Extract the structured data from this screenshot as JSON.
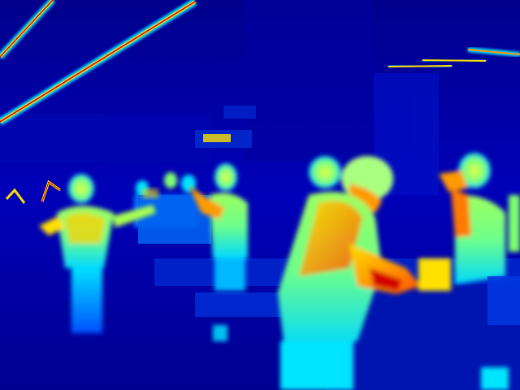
{
  "image": {
    "kind": "thermal-camera-frame",
    "palette": [
      "#00007a",
      "#0000ff",
      "#0064ff",
      "#00e5ff",
      "#7dff6e",
      "#ffe000",
      "#ff7a00",
      "#d40000"
    ],
    "subjects": [
      {
        "name": "worker-far-left-arms-raised"
      },
      {
        "name": "worker-center-back-row"
      },
      {
        "name": "worker-center-facing-left"
      },
      {
        "name": "worker-foreground-leaning"
      },
      {
        "name": "worker-right-at-bench"
      },
      {
        "name": "distant-worker-group"
      }
    ],
    "objects": [
      {
        "name": "ceiling-light-tube"
      },
      {
        "name": "ceiling-fixture-row"
      },
      {
        "name": "work-bench"
      },
      {
        "name": "wall-panel"
      }
    ]
  }
}
